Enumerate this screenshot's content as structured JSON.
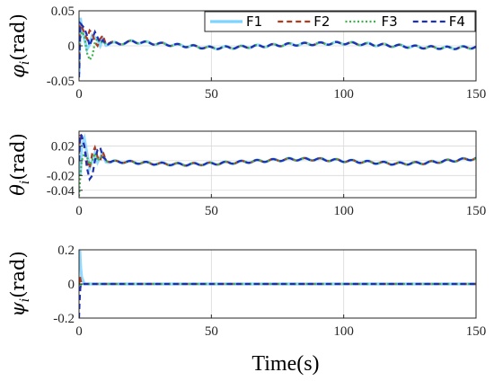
{
  "chart_data": [
    {
      "type": "line",
      "ylabel_main": "φ",
      "ylabel_sub": "i",
      "ylabel_unit": "(rad)",
      "xlim": [
        0,
        150
      ],
      "ylim": [
        -0.05,
        0.05
      ],
      "xticks": [
        0,
        50,
        100,
        150
      ],
      "yticks": [
        -0.05,
        0,
        0.05
      ],
      "xtick_labels": [
        "0",
        "50",
        "100",
        "150"
      ],
      "ytick_labels": [
        "-0.05",
        "0",
        "0.05"
      ],
      "grid": true,
      "legend": "top-right",
      "series": [
        {
          "name": "F1",
          "color": "#7fd4ff",
          "style": "solid",
          "x": [
            0,
            0.5,
            1,
            2,
            3,
            4,
            5,
            6,
            7,
            8,
            9,
            10,
            12,
            15,
            20,
            30,
            40,
            50,
            60,
            70,
            80,
            90,
            100,
            110,
            120,
            130,
            140,
            150
          ],
          "y": [
            -0.04,
            0.04,
            0.025,
            0.01,
            -0.005,
            0.002,
            0.015,
            0.012,
            0.008,
            0.0,
            0.01,
            0.002,
            0.004,
            0.003,
            0.006,
            0.003,
            0.0,
            -0.003,
            -0.002,
            0.0,
            0.002,
            0.003,
            0.004,
            0.002,
            0.0,
            -0.002,
            -0.003,
            -0.002
          ]
        },
        {
          "name": "F2",
          "color": "#b03a1e",
          "style": "dashed",
          "x": [
            0,
            0.5,
            1,
            2,
            3,
            4,
            5,
            6,
            7,
            8,
            9,
            10,
            12,
            15,
            20,
            30,
            40,
            50,
            60,
            70,
            80,
            90,
            100,
            110,
            120,
            130,
            140,
            150
          ],
          "y": [
            -0.03,
            0.03,
            0.028,
            0.018,
            0.01,
            0.022,
            0.018,
            0.005,
            0.0,
            0.01,
            0.015,
            0.004,
            0.005,
            0.003,
            0.006,
            0.003,
            0.0,
            -0.003,
            -0.002,
            0.0,
            0.002,
            0.003,
            0.004,
            0.002,
            0.0,
            -0.002,
            -0.003,
            -0.002
          ]
        },
        {
          "name": "F3",
          "color": "#3cb44b",
          "style": "dotted",
          "x": [
            0,
            0.5,
            1,
            2,
            3,
            4,
            5,
            6,
            7,
            8,
            9,
            10,
            12,
            15,
            20,
            30,
            40,
            50,
            60,
            70,
            80,
            90,
            100,
            110,
            120,
            130,
            140,
            150
          ],
          "y": [
            0.0,
            0.01,
            0.02,
            0.015,
            -0.01,
            -0.02,
            -0.015,
            0.005,
            0.01,
            0.004,
            0.006,
            0.003,
            0.004,
            0.003,
            0.006,
            0.003,
            0.0,
            -0.003,
            -0.002,
            0.0,
            0.002,
            0.003,
            0.004,
            0.002,
            0.0,
            -0.002,
            -0.003,
            -0.002
          ]
        },
        {
          "name": "F4",
          "color": "#1c2fb8",
          "style": "dashed",
          "x": [
            0,
            0.5,
            1,
            2,
            3,
            4,
            5,
            6,
            7,
            8,
            9,
            10,
            12,
            15,
            20,
            30,
            40,
            50,
            60,
            70,
            80,
            90,
            100,
            110,
            120,
            130,
            140,
            150
          ],
          "y": [
            -0.045,
            0.032,
            0.03,
            0.025,
            0.015,
            0.0,
            0.01,
            0.02,
            0.012,
            0.004,
            0.008,
            0.003,
            0.004,
            0.003,
            0.006,
            0.003,
            0.0,
            -0.003,
            -0.002,
            0.0,
            0.002,
            0.003,
            0.004,
            0.002,
            0.0,
            -0.002,
            -0.003,
            -0.002
          ]
        }
      ]
    },
    {
      "type": "line",
      "ylabel_main": "θ",
      "ylabel_sub": "i",
      "ylabel_unit": "(rad)",
      "xlim": [
        0,
        150
      ],
      "ylim": [
        -0.05,
        0.04
      ],
      "xticks": [
        0,
        50,
        100,
        150
      ],
      "yticks": [
        -0.04,
        -0.02,
        0,
        0.02
      ],
      "xtick_labels": [
        "0",
        "50",
        "100",
        "150"
      ],
      "ytick_labels": [
        "-0.04",
        "-0.02",
        "0",
        "0.02"
      ],
      "grid": true,
      "series": [
        {
          "name": "F1",
          "color": "#7fd4ff",
          "style": "solid",
          "x": [
            0,
            0.5,
            1,
            2,
            3,
            4,
            5,
            6,
            7,
            8,
            9,
            10,
            12,
            15,
            20,
            30,
            40,
            50,
            60,
            70,
            80,
            90,
            100,
            110,
            120,
            130,
            140,
            150
          ],
          "y": [
            0.0,
            -0.02,
            0.02,
            0.03,
            0.01,
            -0.01,
            0.0,
            0.01,
            -0.002,
            0.005,
            0.01,
            0.0,
            -0.002,
            -0.001,
            -0.002,
            -0.004,
            -0.005,
            -0.004,
            -0.002,
            0.0,
            0.002,
            0.002,
            0.0,
            -0.002,
            -0.004,
            -0.003,
            0.0,
            0.003
          ]
        },
        {
          "name": "F2",
          "color": "#b03a1e",
          "style": "dashed",
          "x": [
            0,
            0.5,
            1,
            2,
            3,
            4,
            5,
            6,
            7,
            8,
            9,
            10,
            12,
            15,
            20,
            30,
            40,
            50,
            60,
            70,
            80,
            90,
            100,
            110,
            120,
            130,
            140,
            150
          ],
          "y": [
            0.01,
            0.035,
            0.03,
            0.02,
            0.0,
            -0.01,
            0.01,
            0.018,
            0.005,
            0.0,
            0.012,
            0.002,
            -0.002,
            -0.001,
            -0.002,
            -0.004,
            -0.005,
            -0.004,
            -0.002,
            0.0,
            0.002,
            0.002,
            0.0,
            -0.002,
            -0.004,
            -0.003,
            0.0,
            0.003
          ]
        },
        {
          "name": "F3",
          "color": "#3cb44b",
          "style": "dotted",
          "x": [
            0,
            0.5,
            1,
            2,
            3,
            4,
            5,
            6,
            7,
            8,
            9,
            10,
            12,
            15,
            20,
            30,
            40,
            50,
            60,
            70,
            80,
            90,
            100,
            110,
            120,
            130,
            140,
            150
          ],
          "y": [
            -0.048,
            -0.02,
            0.0,
            0.01,
            0.005,
            -0.005,
            0.0,
            0.01,
            0.0,
            0.004,
            0.006,
            0.002,
            -0.002,
            -0.001,
            -0.002,
            -0.004,
            -0.005,
            -0.004,
            -0.002,
            0.0,
            0.002,
            0.002,
            0.0,
            -0.002,
            -0.004,
            -0.003,
            0.0,
            0.003
          ]
        },
        {
          "name": "F4",
          "color": "#1c2fb8",
          "style": "dashed",
          "x": [
            0,
            0.5,
            1,
            2,
            3,
            4,
            5,
            6,
            7,
            8,
            9,
            10,
            12,
            15,
            20,
            30,
            40,
            50,
            60,
            70,
            80,
            90,
            100,
            110,
            120,
            130,
            140,
            150
          ],
          "y": [
            0.0,
            0.036,
            0.034,
            0.02,
            -0.01,
            -0.025,
            -0.02,
            0.0,
            0.015,
            0.018,
            0.005,
            0.002,
            -0.002,
            -0.001,
            -0.002,
            -0.004,
            -0.005,
            -0.004,
            -0.002,
            0.0,
            0.002,
            0.002,
            0.0,
            -0.002,
            -0.004,
            -0.003,
            0.0,
            0.003
          ]
        }
      ]
    },
    {
      "type": "line",
      "ylabel_main": "ψ",
      "ylabel_sub": "i",
      "ylabel_unit": "(rad)",
      "xlabel": "Time(s)",
      "xlim": [
        0,
        150
      ],
      "ylim": [
        -0.2,
        0.2
      ],
      "xticks": [
        0,
        50,
        100,
        150
      ],
      "yticks": [
        -0.2,
        0,
        0.2
      ],
      "xtick_labels": [
        "0",
        "50",
        "100",
        "150"
      ],
      "ytick_labels": [
        "-0.2",
        "0",
        "0.2"
      ],
      "grid": true,
      "series": [
        {
          "name": "F1",
          "color": "#7fd4ff",
          "style": "solid",
          "x": [
            0,
            0.3,
            0.6,
            1,
            1.5,
            2,
            3,
            5,
            150
          ],
          "y": [
            0.2,
            0.2,
            0.1,
            0.04,
            0.02,
            0.0,
            0.0,
            0.0,
            0.0
          ]
        },
        {
          "name": "F2",
          "color": "#b03a1e",
          "style": "dashed",
          "x": [
            0,
            0.3,
            0.6,
            1,
            2,
            150
          ],
          "y": [
            0.0,
            0.05,
            0.02,
            0.005,
            0.0,
            0.0
          ]
        },
        {
          "name": "F3",
          "color": "#3cb44b",
          "style": "dotted",
          "x": [
            0,
            0.3,
            0.6,
            1,
            2,
            150
          ],
          "y": [
            0.0,
            -0.03,
            -0.01,
            0.0,
            0.0,
            0.0
          ]
        },
        {
          "name": "F4",
          "color": "#1c2fb8",
          "style": "dashed",
          "x": [
            0,
            0.2,
            0.5,
            1,
            2,
            150
          ],
          "y": [
            -0.2,
            -0.1,
            -0.02,
            0.0,
            0.0,
            0.0
          ]
        }
      ]
    }
  ]
}
